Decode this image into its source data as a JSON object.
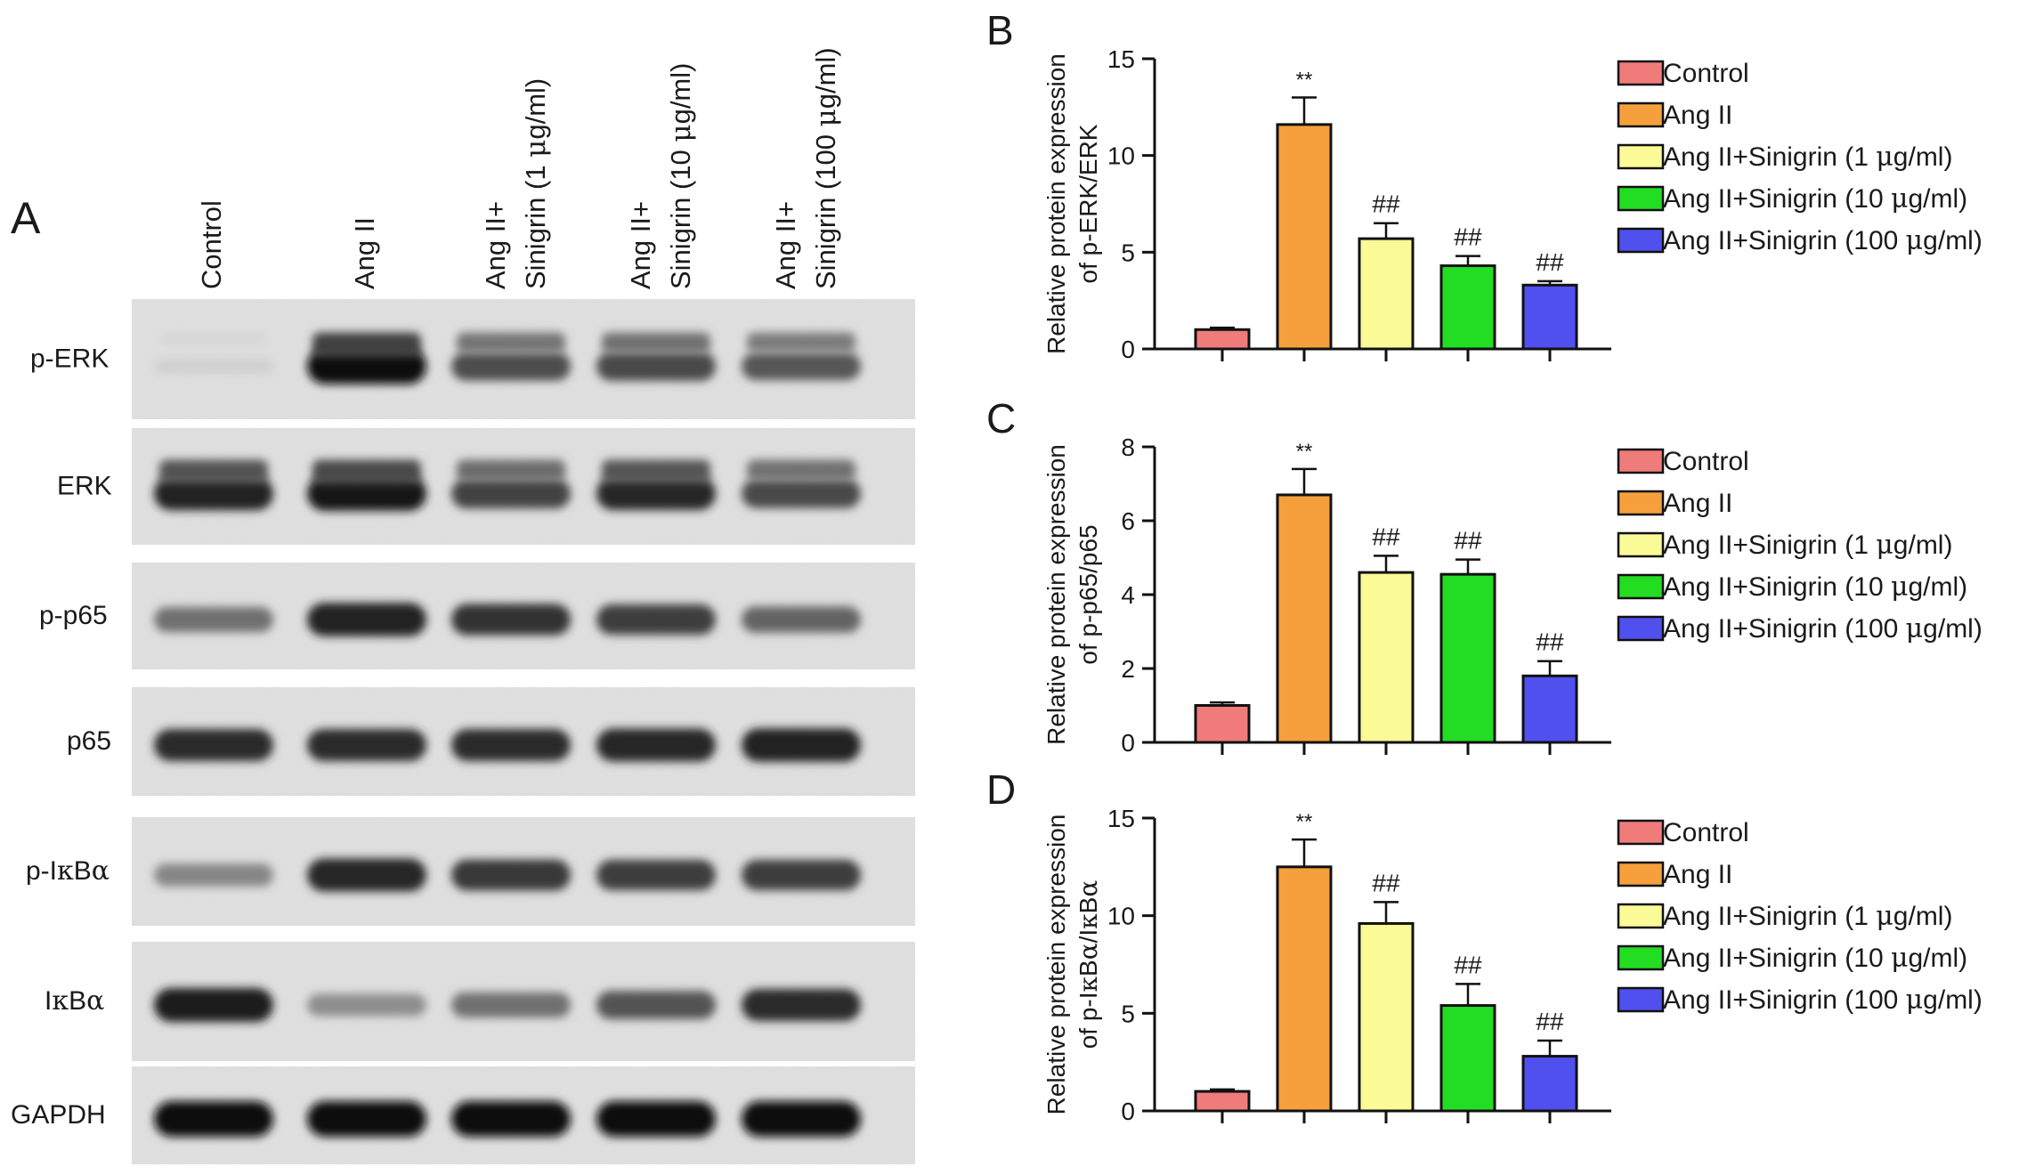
{
  "panel_a": {
    "label": "A",
    "lanes": [
      "Control",
      "Ang II",
      "Ang II+\nSinigrin (1 μg/ml)",
      "Ang II+\nSinigrin (10 μg/ml)",
      "Ang II+\nSinigrin (100 μg/ml)"
    ],
    "blots": [
      {
        "label": "p-ERK",
        "intensity": [
          0.12,
          1.0,
          0.7,
          0.72,
          0.66
        ],
        "doublet": true
      },
      {
        "label": "ERK",
        "intensity": [
          0.9,
          0.95,
          0.75,
          0.88,
          0.72
        ],
        "doublet": true
      },
      {
        "label": "p-p65",
        "intensity": [
          0.55,
          0.9,
          0.82,
          0.78,
          0.6
        ],
        "doublet": false
      },
      {
        "label": "p65",
        "intensity": [
          0.85,
          0.85,
          0.85,
          0.88,
          0.9
        ],
        "doublet": false
      },
      {
        "label": "p-IκBα",
        "intensity": [
          0.45,
          0.88,
          0.8,
          0.78,
          0.78
        ],
        "doublet": false
      },
      {
        "label": "IκBα",
        "intensity": [
          0.92,
          0.42,
          0.55,
          0.68,
          0.85
        ],
        "doublet": false
      },
      {
        "label": "GAPDH",
        "intensity": [
          1.0,
          1.0,
          1.0,
          1.0,
          1.0
        ],
        "doublet": false
      }
    ]
  },
  "chart_data": [
    {
      "label": "B",
      "type": "bar",
      "categories": [
        "Control",
        "Ang II",
        "Ang II+Sinigrin (1 μg/ml)",
        "Ang II+Sinigrin (10 μg/ml)",
        "Ang II+Sinigrin (100 μg/ml)"
      ],
      "values": [
        1.0,
        11.6,
        5.7,
        4.3,
        3.3
      ],
      "errors": [
        0.1,
        1.4,
        0.8,
        0.5,
        0.2
      ],
      "annotations": [
        "",
        "**",
        "##",
        "##",
        "##"
      ],
      "ylabel_lines": [
        "Relative protein expression",
        "of p-ERK/ERK"
      ],
      "ylim": [
        0,
        15
      ],
      "yticks": [
        0,
        5,
        10,
        15
      ],
      "legend_position": "right"
    },
    {
      "label": "C",
      "type": "bar",
      "categories": [
        "Control",
        "Ang II",
        "Ang II+Sinigrin (1 μg/ml)",
        "Ang II+Sinigrin (10 μg/ml)",
        "Ang II+Sinigrin (100 μg/ml)"
      ],
      "values": [
        1.0,
        6.7,
        4.6,
        4.55,
        1.8
      ],
      "errors": [
        0.08,
        0.7,
        0.45,
        0.4,
        0.4
      ],
      "annotations": [
        "",
        "**",
        "##",
        "##",
        "##"
      ],
      "ylabel_lines": [
        "Relative protein expression",
        "of p-p65/p65"
      ],
      "ylim": [
        0,
        8
      ],
      "yticks": [
        0,
        2,
        4,
        6,
        8
      ],
      "legend_position": "right"
    },
    {
      "label": "D",
      "type": "bar",
      "categories": [
        "Control",
        "Ang II",
        "Ang II+Sinigrin (1 μg/ml)",
        "Ang II+Sinigrin (10 μg/ml)",
        "Ang II+Sinigrin (100 μg/ml)"
      ],
      "values": [
        1.0,
        12.5,
        9.6,
        5.4,
        2.8
      ],
      "errors": [
        0.1,
        1.4,
        1.1,
        1.1,
        0.8
      ],
      "annotations": [
        "",
        "**",
        "##",
        "##",
        "##"
      ],
      "ylabel_lines": [
        "Relative protein expression",
        "of p-IκBα/IκBα"
      ],
      "ylim": [
        0,
        15
      ],
      "yticks": [
        0,
        5,
        10,
        15
      ],
      "legend_position": "right"
    }
  ],
  "colors": {
    "series": [
      "#f07b7b",
      "#f5a03c",
      "#fafa96",
      "#22dd22",
      "#5050ee"
    ],
    "axis": "#111111"
  }
}
